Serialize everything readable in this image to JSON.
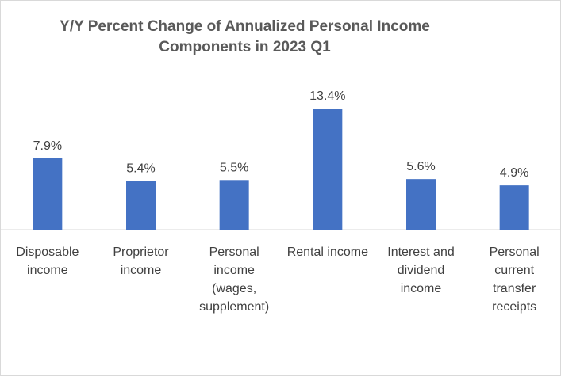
{
  "chart_data": {
    "type": "bar",
    "title_lines": [
      "Y/Y Percent Change of Annualized Personal Income",
      "Components in 2023 Q1"
    ],
    "categories": [
      [
        "Disposable",
        "income"
      ],
      [
        "Proprietor",
        "income"
      ],
      [
        "Personal",
        "income",
        "(wages,",
        "supplement)"
      ],
      [
        "Rental income"
      ],
      [
        "Interest and",
        "dividend",
        "income"
      ],
      [
        "Personal",
        "current",
        "transfer",
        "receipts"
      ]
    ],
    "values": [
      7.9,
      5.4,
      5.5,
      13.4,
      5.6,
      4.9
    ],
    "data_labels": [
      "7.9%",
      "5.4%",
      "5.5%",
      "13.4%",
      "5.6%",
      "4.9%"
    ],
    "ylim": [
      0,
      15
    ],
    "grid": false,
    "legend": "none",
    "colors": {
      "bar": "#4472c4",
      "text": "#404040",
      "title": "#595959",
      "axis": "#d9d9d9"
    }
  }
}
